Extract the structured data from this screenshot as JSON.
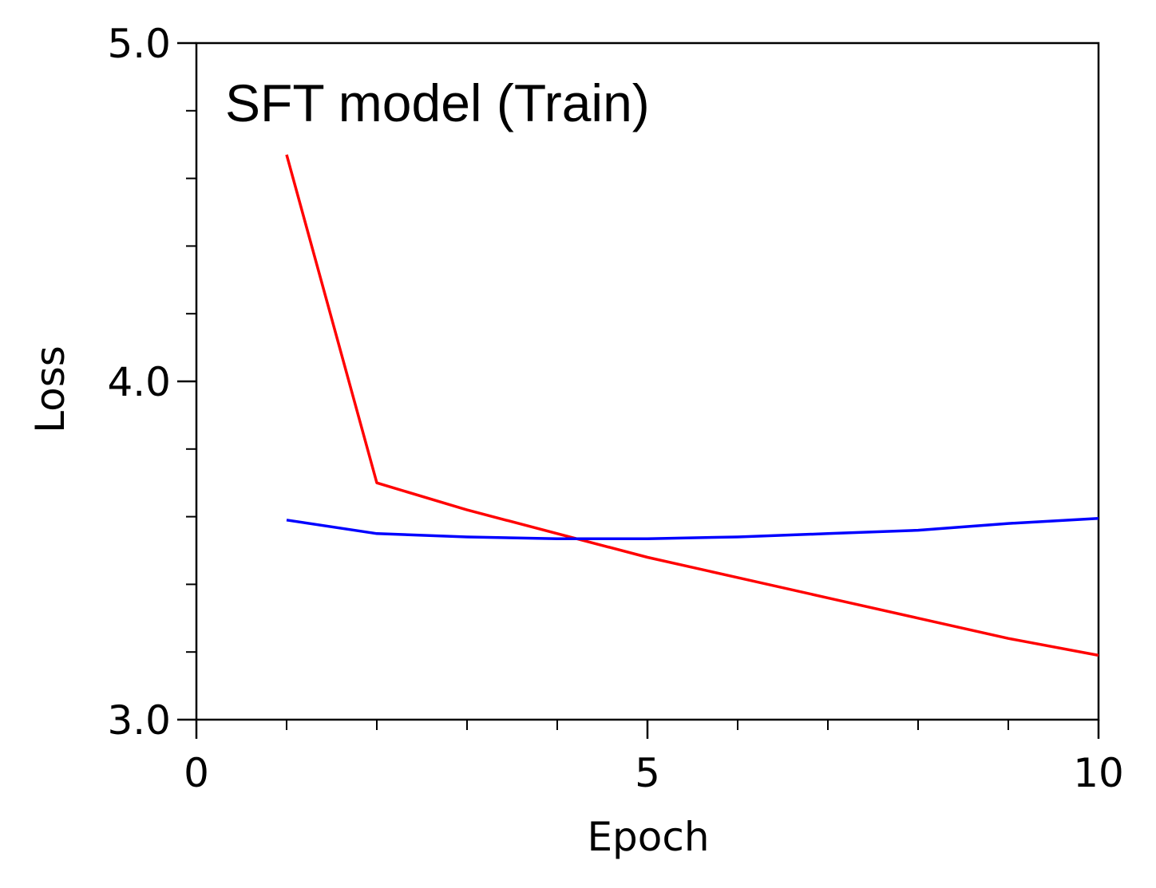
{
  "chart_data": {
    "type": "line",
    "title": "SFT model (Train)",
    "xlabel": "Epoch",
    "ylabel": "Loss",
    "xlim": [
      0,
      10
    ],
    "ylim": [
      3.0,
      5.0
    ],
    "x_ticks": [
      {
        "value": 0,
        "label": "0"
      },
      {
        "value": 5,
        "label": "5"
      },
      {
        "value": 10,
        "label": "10"
      }
    ],
    "x_minor_ticks": [
      1,
      2,
      3,
      4,
      6,
      7,
      8,
      9
    ],
    "y_ticks": [
      {
        "value": 3.0,
        "label": "3.0"
      },
      {
        "value": 4.0,
        "label": "4.0"
      },
      {
        "value": 5.0,
        "label": "5.0"
      }
    ],
    "y_minor_ticks": [
      3.2,
      3.4,
      3.6,
      3.8,
      4.2,
      4.4,
      4.6,
      4.8
    ],
    "grid": false,
    "legend": "none",
    "series": [
      {
        "color": "#ff0000",
        "x": [
          1,
          2,
          3,
          4,
          5,
          6,
          7,
          8,
          9,
          10
        ],
        "y": [
          4.67,
          3.7,
          3.62,
          3.55,
          3.48,
          3.42,
          3.36,
          3.3,
          3.24,
          3.19
        ]
      },
      {
        "color": "#0000ff",
        "x": [
          1,
          2,
          3,
          4,
          5,
          6,
          7,
          8,
          9,
          10
        ],
        "y": [
          3.59,
          3.55,
          3.54,
          3.535,
          3.535,
          3.54,
          3.55,
          3.56,
          3.58,
          3.595
        ]
      }
    ]
  }
}
